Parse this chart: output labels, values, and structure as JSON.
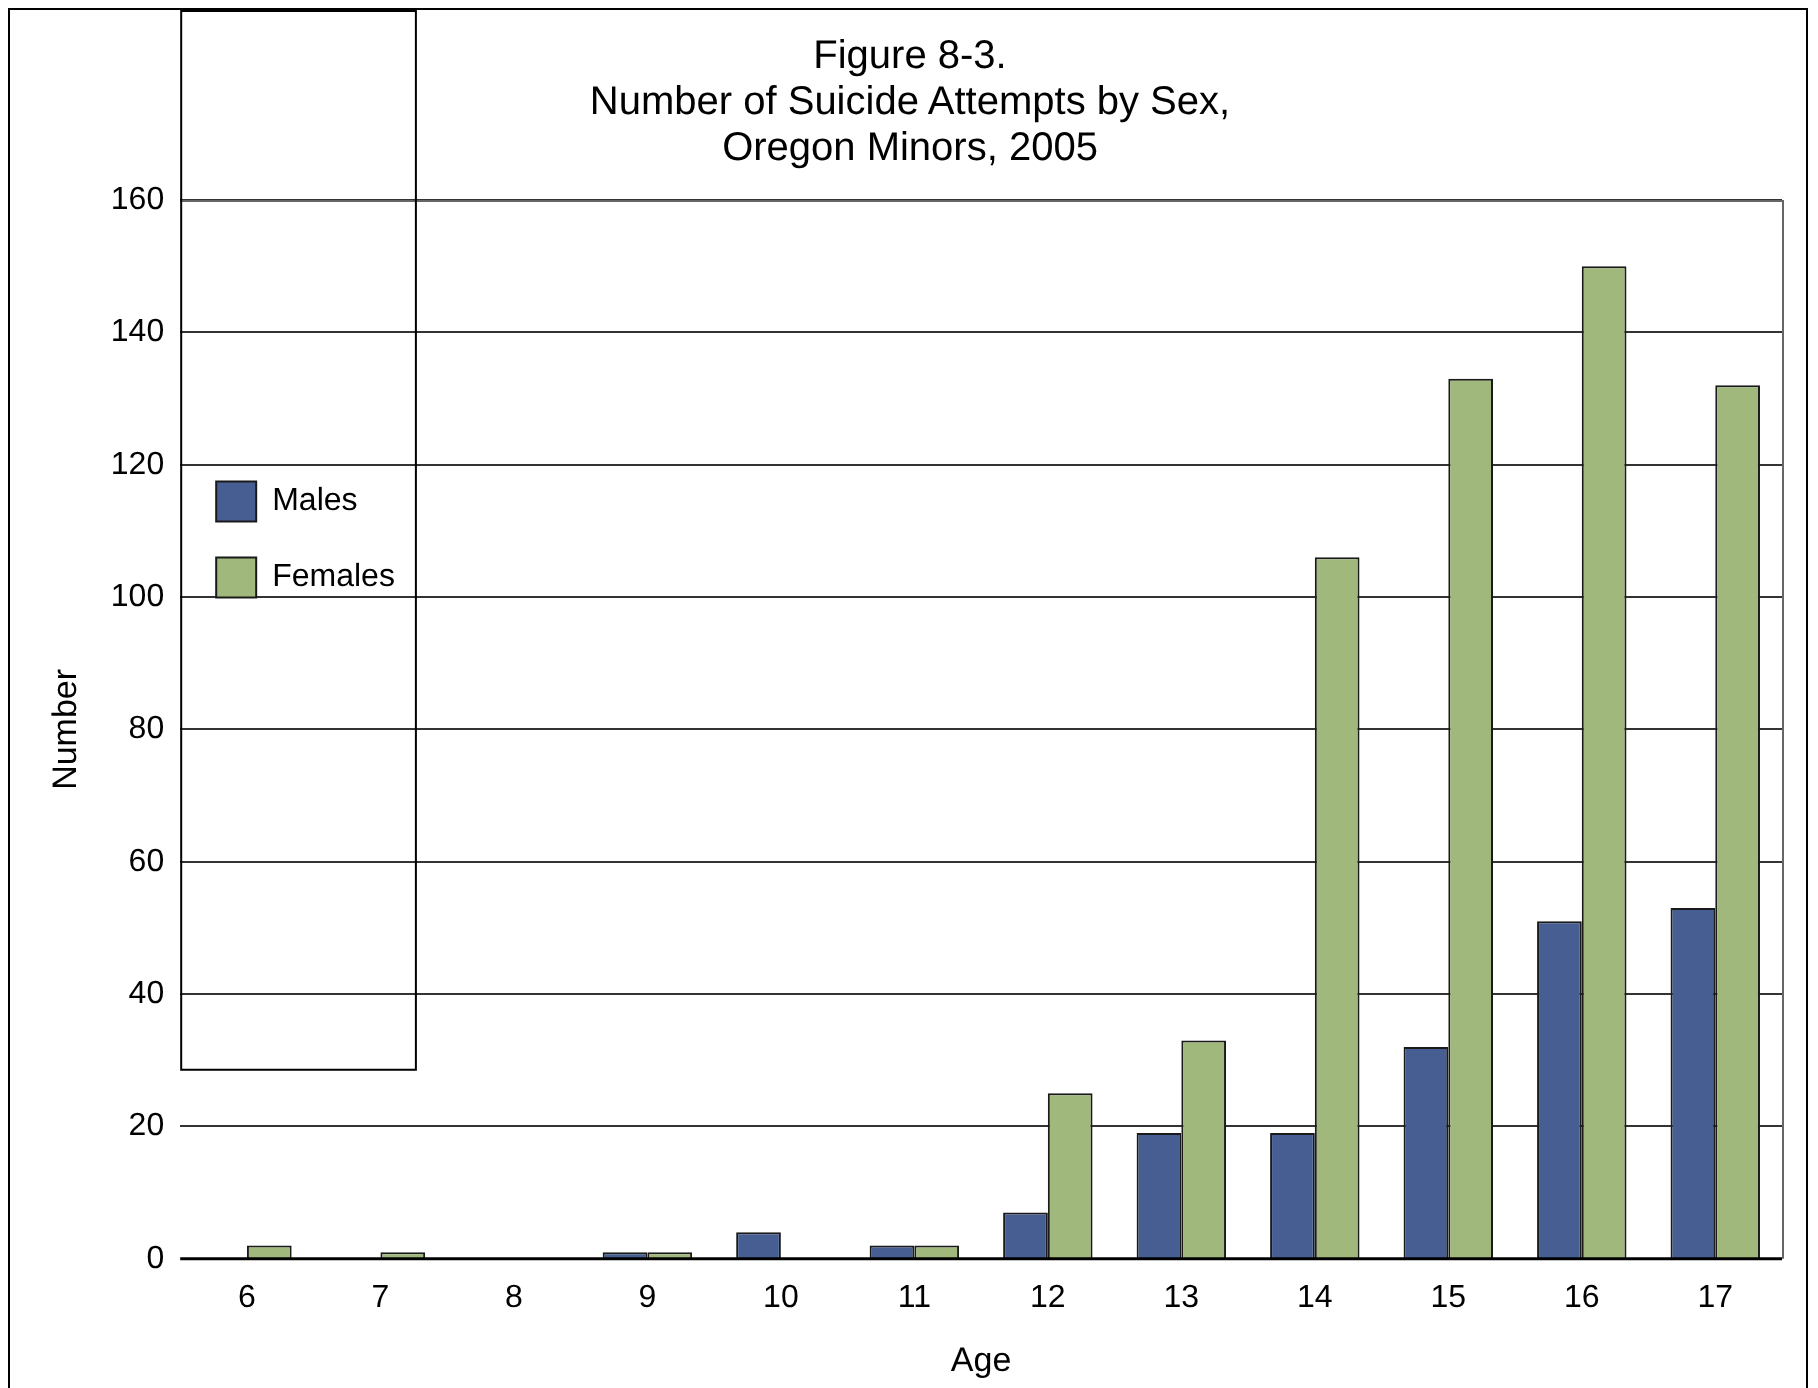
{
  "chart_data": {
    "type": "bar",
    "title": [
      "Figure 8-3.",
      "Number of Suicide Attempts by Sex,",
      "Oregon Minors, 2005"
    ],
    "xlabel": "Age",
    "ylabel": "Number",
    "categories": [
      "6",
      "7",
      "8",
      "9",
      "10",
      "11",
      "12",
      "13",
      "14",
      "15",
      "16",
      "17"
    ],
    "series": [
      {
        "name": "Males",
        "color": "#465e91",
        "values": [
          0,
          0,
          0,
          1,
          4,
          2,
          7,
          19,
          19,
          32,
          51,
          53
        ]
      },
      {
        "name": "Females",
        "color": "#a0b87c",
        "values": [
          2,
          1,
          0,
          1,
          0,
          2,
          25,
          33,
          106,
          133,
          150,
          132
        ]
      }
    ],
    "ylim": [
      0,
      160
    ],
    "yticks": [
      0,
      20,
      40,
      60,
      80,
      100,
      120,
      140,
      160
    ],
    "grid": "y",
    "legend": "top left"
  }
}
